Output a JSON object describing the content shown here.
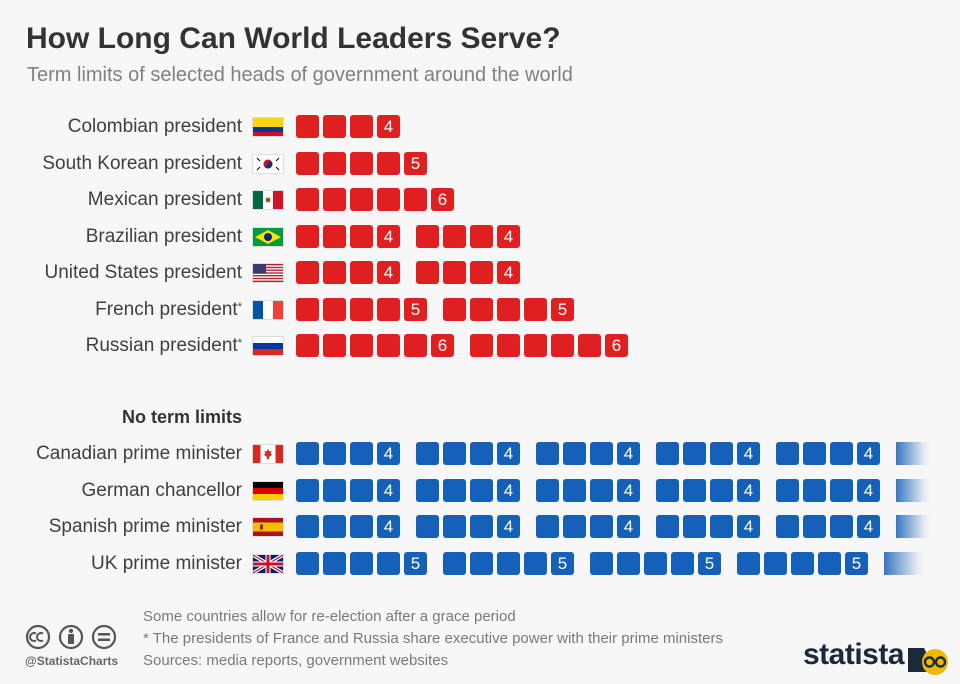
{
  "title": "How Long Can World Leaders Serve?",
  "subtitle": "Term limits of selected heads of government around the world",
  "chart_data": {
    "type": "table",
    "description_unit": "years per term",
    "term_limited": [
      {
        "label": "Colombian president",
        "asterisk": false,
        "flag": "colombia-flag",
        "terms": [
          4
        ]
      },
      {
        "label": "South Korean president",
        "asterisk": false,
        "flag": "south-korea-flag",
        "terms": [
          5
        ]
      },
      {
        "label": "Mexican president",
        "asterisk": false,
        "flag": "mexico-flag",
        "terms": [
          6
        ]
      },
      {
        "label": "Brazilian president",
        "asterisk": false,
        "flag": "brazil-flag",
        "terms": [
          4,
          4
        ]
      },
      {
        "label": "United States president",
        "asterisk": false,
        "flag": "usa-flag",
        "terms": [
          4,
          4
        ]
      },
      {
        "label": "French president",
        "asterisk": true,
        "flag": "france-flag",
        "terms": [
          5,
          5
        ]
      },
      {
        "label": "Russian president",
        "asterisk": true,
        "flag": "russia-flag",
        "terms": [
          6,
          6
        ]
      }
    ],
    "no_limit_heading": "No term limits",
    "no_limit": [
      {
        "label": "Canadian prime minister",
        "flag": "canada-flag",
        "terms": [
          4,
          4,
          4,
          4,
          4
        ],
        "continues": true
      },
      {
        "label": "German chancellor",
        "flag": "germany-flag",
        "terms": [
          4,
          4,
          4,
          4,
          4
        ],
        "continues": true
      },
      {
        "label": "Spanish prime minister",
        "flag": "spain-flag",
        "terms": [
          4,
          4,
          4,
          4,
          4
        ],
        "continues": true
      },
      {
        "label": "UK prime minister",
        "flag": "uk-flag",
        "terms": [
          5,
          5,
          5,
          5
        ],
        "continues": true
      }
    ],
    "colors": {
      "limited": "#e02020",
      "unlimited": "#1560b8"
    }
  },
  "footer": {
    "note1": "Some countries allow for re-election after a grace period",
    "note2": "* The presidents of France and Russia share executive power with their prime ministers",
    "sources": "Sources: media reports, government websites",
    "handle": "@StatistaCharts",
    "brand": "statista"
  },
  "asterisk_mark": "*"
}
